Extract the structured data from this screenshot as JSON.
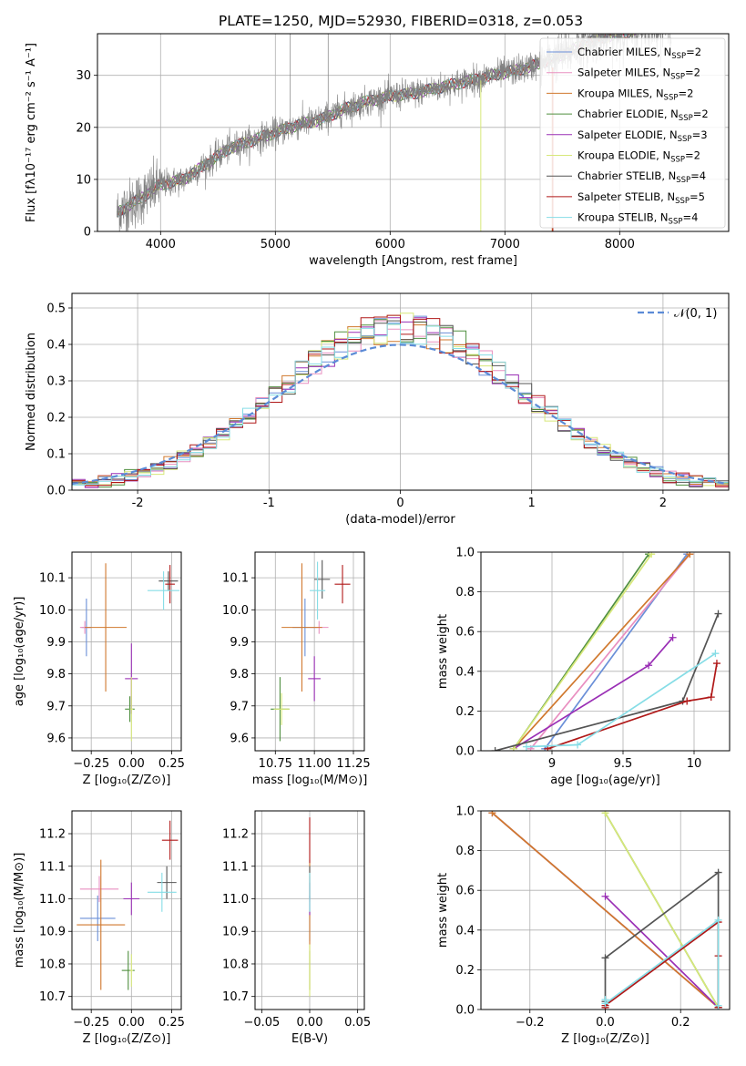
{
  "figure_title": "PLATE=1250, MJD=52930, FIBERID=0318, z=0.053",
  "models": [
    {
      "name": "Chabrier MILES",
      "nssp": "2",
      "color": "#6a8fd8"
    },
    {
      "name": "Salpeter MILES",
      "nssp": "2",
      "color": "#e98fc0"
    },
    {
      "name": "Kroupa MILES",
      "nssp": "2",
      "color": "#d0782d"
    },
    {
      "name": "Chabrier ELODIE",
      "nssp": "2",
      "color": "#4f8f3f"
    },
    {
      "name": "Salpeter ELODIE",
      "nssp": "3",
      "color": "#9a2fb5"
    },
    {
      "name": "Kroupa ELODIE",
      "nssp": "2",
      "color": "#d7e87a"
    },
    {
      "name": "Chabrier STELIB",
      "nssp": "4",
      "color": "#545454"
    },
    {
      "name": "Salpeter STELIB",
      "nssp": "5",
      "color": "#b01818"
    },
    {
      "name": "Kroupa STELIB",
      "nssp": "4",
      "color": "#86dde6"
    }
  ],
  "chart_data": [
    {
      "id": "spectrum",
      "type": "line",
      "xlabel": "wavelength [Angstrom, rest frame]",
      "ylabel": "Flux [fλ10⁻¹⁷ erg cm⁻² s⁻¹ A⁻¹]",
      "xlim": [
        3450,
        8950
      ],
      "ylim": [
        0,
        38
      ],
      "xticks": [
        4000,
        5000,
        6000,
        7000,
        8000
      ],
      "yticks": [
        0,
        10,
        20,
        30
      ],
      "grid": true,
      "legend": "top-right",
      "data_trend": {
        "x": [
          3650,
          3800,
          4000,
          4200,
          4400,
          4600,
          4800,
          5000,
          5200,
          5400,
          5600,
          5800,
          6000,
          6200,
          6400,
          6600,
          6800,
          7000,
          7200,
          7400,
          7600,
          7800,
          8000,
          8200,
          8400
        ],
        "y": [
          4,
          6,
          9,
          10,
          13,
          16,
          17.5,
          19,
          20.5,
          21.5,
          23.5,
          25,
          26,
          26.5,
          27.5,
          28.5,
          29.5,
          30.5,
          31.5,
          33,
          35,
          37,
          38,
          39,
          40
        ]
      }
    },
    {
      "id": "residuals",
      "type": "line",
      "xlabel": "(data-model)/error",
      "ylabel": "Normed distribution",
      "xlim": [
        -2.5,
        2.5
      ],
      "ylim": [
        0,
        0.54
      ],
      "xticks": [
        -2,
        -1,
        0,
        1,
        2
      ],
      "yticks": [
        0.0,
        0.1,
        0.2,
        0.3,
        0.4,
        0.5
      ],
      "grid": true,
      "legend": "top-right",
      "reference_curve": {
        "label": "𝒩(0, 1)",
        "mean": 0,
        "sigma": 1
      }
    },
    {
      "id": "age_vs_Z",
      "type": "scatter",
      "xlabel": "Z [log₁₀(Z/Z⊙)]",
      "ylabel": "age  [log₁₀(age/yr)]",
      "xlim": [
        -0.37,
        0.31
      ],
      "ylim": [
        9.56,
        10.18
      ],
      "xticks": [
        -0.25,
        0.0,
        0.25
      ],
      "xticklabels": [
        "−0.25",
        "0.00",
        "0.25"
      ],
      "yticks": [
        9.6,
        9.7,
        9.8,
        9.9,
        10.0,
        10.1
      ],
      "grid": true,
      "points": [
        {
          "model": 0,
          "x": -0.28,
          "y": 9.945,
          "xerr": 0.03,
          "yerr": 0.09
        },
        {
          "model": 1,
          "x": -0.29,
          "y": 9.945,
          "xerr": 0.03,
          "yerr": 0.02
        },
        {
          "model": 2,
          "x": -0.16,
          "y": 9.945,
          "xerr": 0.13,
          "yerr": 0.2
        },
        {
          "model": 3,
          "x": -0.01,
          "y": 9.69,
          "xerr": 0.03,
          "yerr": 0.04
        },
        {
          "model": 4,
          "x": 0.0,
          "y": 9.785,
          "xerr": 0.04,
          "yerr": 0.11
        },
        {
          "model": 5,
          "x": 0.0,
          "y": 9.69,
          "xerr": 0.01,
          "yerr": 0.1
        },
        {
          "model": 6,
          "x": 0.23,
          "y": 10.09,
          "xerr": 0.06,
          "yerr": 0.03
        },
        {
          "model": 7,
          "x": 0.24,
          "y": 10.08,
          "xerr": 0.03,
          "yerr": 0.06
        },
        {
          "model": 8,
          "x": 0.2,
          "y": 10.06,
          "xerr": 0.1,
          "yerr": 0.06
        }
      ]
    },
    {
      "id": "age_vs_mass",
      "type": "scatter",
      "xlabel": "mass [log₁₀(M/M⊙)]",
      "xlim": [
        10.62,
        11.32
      ],
      "ylim": [
        9.56,
        10.18
      ],
      "xticks": [
        10.75,
        11.0,
        11.25
      ],
      "xticklabels": [
        "10.75",
        "11.00",
        "11.25"
      ],
      "yticks": [
        9.6,
        9.7,
        9.8,
        9.9,
        10.0,
        10.1
      ],
      "grid": true,
      "points": [
        {
          "model": 0,
          "x": 10.94,
          "y": 9.945,
          "xerr": 0.08,
          "yerr": 0.09
        },
        {
          "model": 1,
          "x": 11.03,
          "y": 9.945,
          "xerr": 0.06,
          "yerr": 0.02
        },
        {
          "model": 2,
          "x": 10.92,
          "y": 9.945,
          "xerr": 0.13,
          "yerr": 0.2
        },
        {
          "model": 3,
          "x": 10.78,
          "y": 9.69,
          "xerr": 0.06,
          "yerr": 0.1
        },
        {
          "model": 4,
          "x": 11.0,
          "y": 9.785,
          "xerr": 0.04,
          "yerr": 0.07
        },
        {
          "model": 5,
          "x": 10.79,
          "y": 9.69,
          "xerr": 0.05,
          "yerr": 0.05
        },
        {
          "model": 6,
          "x": 11.05,
          "y": 10.095,
          "xerr": 0.05,
          "yerr": 0.06
        },
        {
          "model": 7,
          "x": 11.18,
          "y": 10.08,
          "xerr": 0.05,
          "yerr": 0.06
        },
        {
          "model": 8,
          "x": 11.02,
          "y": 10.06,
          "xerr": 0.05,
          "yerr": 0.09
        }
      ]
    },
    {
      "id": "mass_weight_vs_age",
      "type": "line",
      "xlabel": "age  [log₁₀(age/yr)]",
      "ylabel": "mass weight",
      "xlim": [
        8.5,
        10.25
      ],
      "ylim": [
        0,
        1
      ],
      "xticks": [
        9.0,
        9.5,
        10.0
      ],
      "yticks": [
        0.0,
        0.2,
        0.4,
        0.6,
        0.8,
        1.0
      ],
      "grid": true,
      "series": [
        {
          "model": 0,
          "x": [
            8.95,
            9.95
          ],
          "y": [
            0.01,
            0.99
          ]
        },
        {
          "model": 1,
          "x": [
            8.85,
            9.97
          ],
          "y": [
            0.01,
            0.99
          ]
        },
        {
          "model": 2,
          "x": [
            8.73,
            9.97
          ],
          "y": [
            0.01,
            0.99
          ]
        },
        {
          "model": 3,
          "x": [
            8.73,
            9.68
          ],
          "y": [
            0.01,
            0.99
          ]
        },
        {
          "model": 4,
          "x": [
            8.73,
            9.68,
            9.85
          ],
          "y": [
            0.01,
            0.43,
            0.57
          ]
        },
        {
          "model": 5,
          "x": [
            8.73,
            9.7
          ],
          "y": [
            0.01,
            0.99
          ]
        },
        {
          "model": 6,
          "x": [
            8.6,
            9.92,
            10.17
          ],
          "y": [
            0.0,
            0.25,
            0.69
          ]
        },
        {
          "model": 7,
          "x": [
            8.97,
            9.95,
            10.12,
            10.16
          ],
          "y": [
            0.01,
            0.25,
            0.27,
            0.44
          ]
        },
        {
          "model": 8,
          "x": [
            8.82,
            9.18,
            10.15
          ],
          "y": [
            0.02,
            0.03,
            0.49
          ]
        }
      ]
    },
    {
      "id": "mass_vs_Z",
      "type": "scatter",
      "xlabel": "Z [log₁₀(Z/Z⊙)]",
      "ylabel": "mass [log₁₀(M/M⊙)]",
      "xlim": [
        -0.37,
        0.31
      ],
      "ylim": [
        10.66,
        11.27
      ],
      "xticks": [
        -0.25,
        0.0,
        0.25
      ],
      "xticklabels": [
        "−0.25",
        "0.00",
        "0.25"
      ],
      "yticks": [
        10.7,
        10.8,
        10.9,
        11.0,
        11.1,
        11.2
      ],
      "grid": true,
      "points": [
        {
          "model": 0,
          "x": -0.21,
          "y": 10.94,
          "xerr": 0.11,
          "yerr": 0.07
        },
        {
          "model": 1,
          "x": -0.2,
          "y": 11.03,
          "xerr": 0.12,
          "yerr": 0.04
        },
        {
          "model": 2,
          "x": -0.19,
          "y": 10.92,
          "xerr": 0.15,
          "yerr": 0.2
        },
        {
          "model": 3,
          "x": -0.02,
          "y": 10.78,
          "xerr": 0.04,
          "yerr": 0.06
        },
        {
          "model": 4,
          "x": 0.0,
          "y": 11.0,
          "xerr": 0.05,
          "yerr": 0.05
        },
        {
          "model": 5,
          "x": 0.0,
          "y": 10.78,
          "xerr": 0.01,
          "yerr": 0.05
        },
        {
          "model": 6,
          "x": 0.22,
          "y": 11.05,
          "xerr": 0.06,
          "yerr": 0.05
        },
        {
          "model": 7,
          "x": 0.24,
          "y": 11.18,
          "xerr": 0.05,
          "yerr": 0.06
        },
        {
          "model": 8,
          "x": 0.19,
          "y": 11.02,
          "xerr": 0.09,
          "yerr": 0.06
        }
      ]
    },
    {
      "id": "mass_vs_EBV",
      "type": "scatter",
      "xlabel": "E(B-V)",
      "xlim": [
        -0.057,
        0.057
      ],
      "ylim": [
        10.66,
        11.27
      ],
      "xticks": [
        -0.05,
        0.0,
        0.05
      ],
      "xticklabels": [
        "−0.05",
        "0.00",
        "0.05"
      ],
      "yticks": [
        10.7,
        10.8,
        10.9,
        11.0,
        11.1,
        11.2
      ],
      "grid": true,
      "points": [
        {
          "model": 0,
          "x": 0.0,
          "y": 10.94,
          "xerr": 0.0,
          "yerr": 0.07
        },
        {
          "model": 1,
          "x": 0.0,
          "y": 11.03,
          "xerr": 0.0,
          "yerr": 0.04
        },
        {
          "model": 2,
          "x": 0.0,
          "y": 10.92,
          "xerr": 0.0,
          "yerr": 0.2
        },
        {
          "model": 3,
          "x": 0.0,
          "y": 10.78,
          "xerr": 0.0,
          "yerr": 0.06
        },
        {
          "model": 4,
          "x": 0.0,
          "y": 11.0,
          "xerr": 0.0,
          "yerr": 0.05
        },
        {
          "model": 5,
          "x": 0.0,
          "y": 10.78,
          "xerr": 0.0,
          "yerr": 0.08
        },
        {
          "model": 6,
          "x": 0.0,
          "y": 11.05,
          "xerr": 0.0,
          "yerr": 0.05
        },
        {
          "model": 7,
          "x": 0.0,
          "y": 11.18,
          "xerr": 0.0,
          "yerr": 0.07
        },
        {
          "model": 8,
          "x": 0.0,
          "y": 11.02,
          "xerr": 0.0,
          "yerr": 0.06
        }
      ]
    },
    {
      "id": "mass_weight_vs_Z",
      "type": "line",
      "xlabel": "Z [log₁₀(Z/Z⊙)]",
      "ylabel": "mass weight",
      "xlim": [
        -0.33,
        0.33
      ],
      "ylim": [
        0,
        1
      ],
      "xticks": [
        -0.2,
        0.0,
        0.2
      ],
      "xticklabels": [
        "−0.2",
        "0.0",
        "0.2"
      ],
      "yticks": [
        0.0,
        0.2,
        0.4,
        0.6,
        0.8,
        1.0
      ],
      "grid": true,
      "series": [
        {
          "model": 0,
          "x": [
            -0.3,
            0.3
          ],
          "y": [
            0.99,
            0.01
          ]
        },
        {
          "model": 1,
          "x": [
            -0.3,
            0.3
          ],
          "y": [
            0.99,
            0.01
          ]
        },
        {
          "model": 2,
          "x": [
            -0.3,
            0.3
          ],
          "y": [
            0.99,
            0.01
          ]
        },
        {
          "model": 3,
          "x": [
            0.0,
            0.3
          ],
          "y": [
            0.99,
            0.01
          ]
        },
        {
          "model": 4,
          "x": [
            0.0,
            0.3
          ],
          "y": [
            0.57,
            0.01
          ]
        },
        {
          "model": 5,
          "x": [
            0.0,
            0.3
          ],
          "y": [
            0.99,
            0.01
          ]
        },
        {
          "model": 6,
          "x": [
            0.0,
            0.0,
            0.3,
            0.3
          ],
          "y": [
            0.04,
            0.26,
            0.69,
            0.01
          ]
        },
        {
          "model": 7,
          "x": [
            0.0,
            0.0,
            0.3,
            0.3,
            0.3
          ],
          "y": [
            0.01,
            0.02,
            0.44,
            0.27,
            0.01
          ]
        },
        {
          "model": 8,
          "x": [
            0.0,
            0.0,
            0.3,
            0.3
          ],
          "y": [
            0.05,
            0.03,
            0.45,
            0.02
          ]
        }
      ]
    }
  ]
}
